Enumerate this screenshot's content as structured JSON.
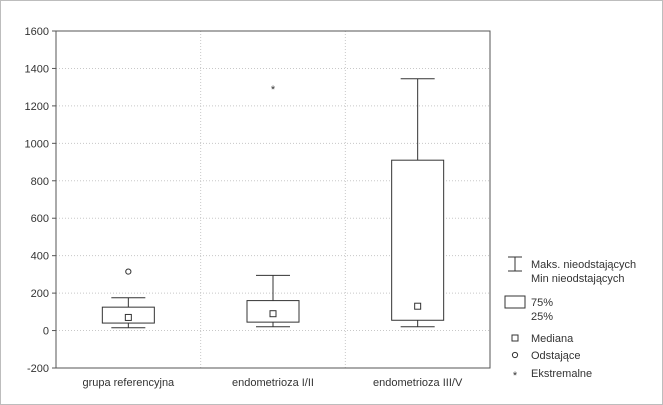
{
  "chart_data": {
    "type": "box",
    "title": "",
    "xlabel": "",
    "ylabel": "",
    "ylim": [
      -200,
      1600
    ],
    "yticks": [
      -200,
      0,
      200,
      400,
      600,
      800,
      1000,
      1200,
      1400,
      1600
    ],
    "grid": true,
    "legend_position": "right",
    "categories": [
      "grupa referencyjna",
      "endometrioza I/II",
      "endometrioza III/V"
    ],
    "boxes": [
      {
        "category": "grupa referencyjna",
        "whisker_low": 15,
        "q1": 40,
        "median": 70,
        "q3": 125,
        "whisker_high": 175,
        "outliers": [
          315
        ],
        "extremes": []
      },
      {
        "category": "endometrioza I/II",
        "whisker_low": 20,
        "q1": 45,
        "median": 90,
        "q3": 160,
        "whisker_high": 295,
        "outliers": [],
        "extremes": [
          1295
        ]
      },
      {
        "category": "endometrioza III/V",
        "whisker_low": 20,
        "q1": 55,
        "median": 130,
        "q3": 910,
        "whisker_high": 1345,
        "outliers": [],
        "extremes": []
      }
    ],
    "legend": {
      "whisker_max": "Maks. nieodstających",
      "whisker_min": "Min nieodstających",
      "box_high": "75%",
      "box_low": "25%",
      "median": "Mediana",
      "outlier": "Odstające",
      "extreme": "Ekstremalne"
    }
  },
  "colors": {
    "axis": "#555555",
    "grid": "#c8c8c8",
    "box": "#333333",
    "frame": "#bdbdbd"
  }
}
